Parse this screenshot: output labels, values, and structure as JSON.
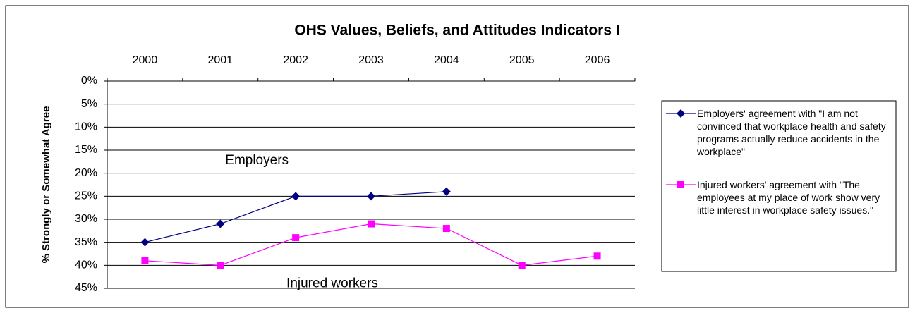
{
  "chart_data": {
    "type": "line",
    "title": "OHS Values, Beliefs, and Attitudes Indicators I",
    "y_label": "% Strongly or Somewhat Agree",
    "categories": [
      "2000",
      "2001",
      "2002",
      "2003",
      "2004",
      "2005",
      "2006"
    ],
    "series": [
      {
        "name": "Employers' agreement with \"I am not convinced that workplace health and safety programs actually reduce accidents in the workplace\"",
        "color": "#000080",
        "marker": "diamond",
        "values": [
          35,
          31,
          25,
          25,
          24,
          null,
          null
        ]
      },
      {
        "name": "Injured workers' agreement with \"The employees at my place of work show very little interest in workplace safety issues.\"",
        "color": "#ff00ff",
        "marker": "square",
        "values": [
          39,
          40,
          34,
          31,
          32,
          40,
          38
        ]
      }
    ],
    "ylim": [
      0,
      45
    ],
    "y_inverted": true,
    "yticks": [
      {
        "value": 0,
        "label": "0%"
      },
      {
        "value": 5,
        "label": "5%"
      },
      {
        "value": 10,
        "label": "10%"
      },
      {
        "value": 15,
        "label": "15%"
      },
      {
        "value": 20,
        "label": "20%"
      },
      {
        "value": 25,
        "label": "25%"
      },
      {
        "value": 30,
        "label": "30%"
      },
      {
        "value": 35,
        "label": "35%"
      },
      {
        "value": 40,
        "label": "40%"
      },
      {
        "value": 45,
        "label": "45%"
      }
    ],
    "grid": true,
    "legend": "right",
    "annotations": [
      {
        "text": "Employers",
        "x": "2002",
        "y": 17.3
      },
      {
        "text": "Injured workers",
        "x": "2003",
        "y": 44
      }
    ]
  }
}
